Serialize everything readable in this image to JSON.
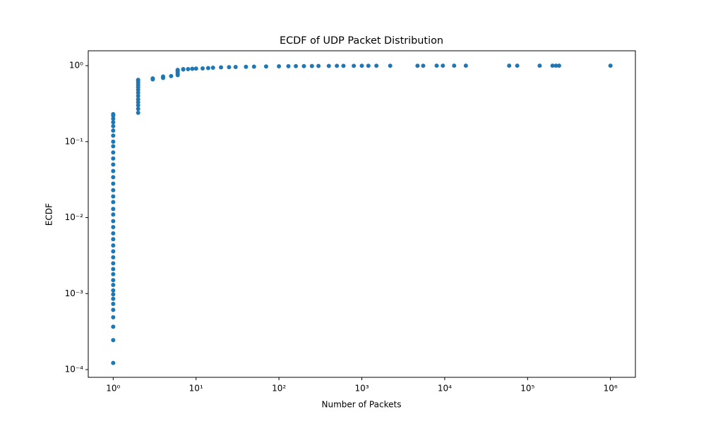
{
  "chart_data": {
    "type": "scatter",
    "title": "ECDF of UDP Packet Distribution",
    "x_label": "Number of Packets",
    "y_label": "ECDF",
    "x_scale": "log",
    "y_scale": "log",
    "color": "#1f77b4",
    "xlim": [
      0.5,
      2000000
    ],
    "ylim": [
      7.9e-05,
      1.57
    ],
    "xticks": [
      {
        "value": 1,
        "label": "10⁰"
      },
      {
        "value": 10,
        "label": "10¹"
      },
      {
        "value": 100,
        "label": "10²"
      },
      {
        "value": 1000,
        "label": "10³"
      },
      {
        "value": 10000,
        "label": "10⁴"
      },
      {
        "value": 100000,
        "label": "10⁵"
      },
      {
        "value": 1000000,
        "label": "10⁶"
      }
    ],
    "yticks": [
      {
        "value": 0.0001,
        "label": "10⁻⁴"
      },
      {
        "value": 0.001,
        "label": "10⁻³"
      },
      {
        "value": 0.01,
        "label": "10⁻²"
      },
      {
        "value": 0.1,
        "label": "10⁻¹"
      },
      {
        "value": 1,
        "label": "10⁰"
      }
    ],
    "x": [
      1,
      1,
      1,
      1,
      1,
      1,
      1,
      1,
      1,
      1,
      1,
      1,
      1,
      1,
      1,
      1,
      1,
      1,
      1,
      1,
      1,
      1,
      1,
      1,
      1,
      1,
      1,
      1,
      1,
      1,
      1,
      1,
      1,
      1,
      1,
      1,
      1,
      1,
      1,
      1,
      1,
      2,
      2,
      2,
      2,
      2,
      2,
      2,
      2,
      2,
      2,
      2,
      2,
      2,
      3,
      3,
      3,
      4,
      4,
      4,
      5,
      6,
      6,
      6,
      6,
      6,
      7,
      7,
      8,
      9,
      10,
      12,
      14,
      16,
      20,
      25,
      30,
      40,
      50,
      70,
      100,
      130,
      160,
      200,
      250,
      300,
      400,
      500,
      600,
      800,
      1000,
      1200,
      1500,
      2200,
      4700,
      5500,
      8000,
      9500,
      13000,
      18000,
      60000,
      75000,
      140000,
      200000,
      220000,
      240000,
      1000000
    ],
    "values": [
      0.000122,
      0.000244,
      0.000366,
      0.000488,
      0.00061,
      0.000732,
      0.000854,
      0.000976,
      0.0011,
      0.0013,
      0.0015,
      0.0018,
      0.0021,
      0.0025,
      0.003,
      0.0036,
      0.0043,
      0.0052,
      0.0062,
      0.0075,
      0.009,
      0.011,
      0.013,
      0.016,
      0.019,
      0.023,
      0.028,
      0.034,
      0.041,
      0.05,
      0.06,
      0.072,
      0.087,
      0.1,
      0.12,
      0.14,
      0.16,
      0.18,
      0.2,
      0.22,
      0.23,
      0.24,
      0.27,
      0.3,
      0.33,
      0.36,
      0.4,
      0.44,
      0.48,
      0.52,
      0.56,
      0.6,
      0.64,
      0.65,
      0.66,
      0.67,
      0.68,
      0.69,
      0.71,
      0.72,
      0.73,
      0.75,
      0.79,
      0.83,
      0.87,
      0.88,
      0.89,
      0.9,
      0.9,
      0.91,
      0.915,
      0.92,
      0.93,
      0.94,
      0.95,
      0.955,
      0.96,
      0.965,
      0.97,
      0.975,
      0.98,
      0.983,
      0.985,
      0.987,
      0.99,
      0.991,
      0.992,
      0.993,
      0.994,
      0.995,
      0.996,
      0.997,
      0.997,
      0.998,
      0.998,
      0.998,
      0.999,
      0.999,
      0.999,
      0.999,
      0.9995,
      0.9995,
      0.9996,
      0.9997,
      0.9998,
      0.9999,
      1.0
    ]
  }
}
